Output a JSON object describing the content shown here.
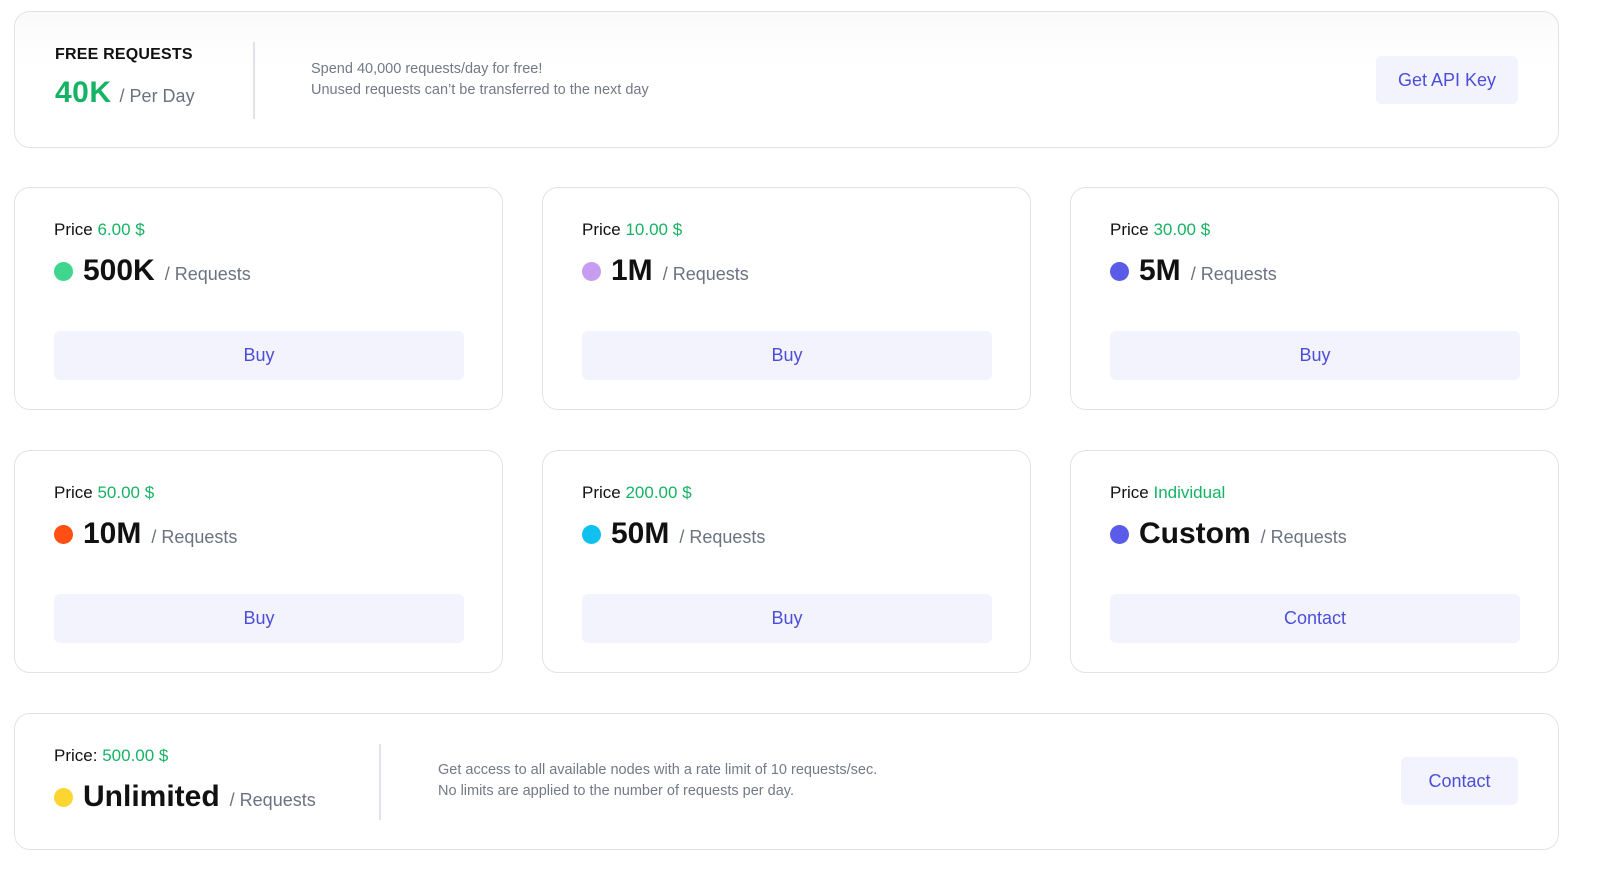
{
  "free": {
    "title": "FREE REQUESTS",
    "amount": "40K",
    "unit": "/ Per Day",
    "desc_line1": "Spend 40,000 requests/day for free!",
    "desc_line2": "Unused requests can’t be transferred to the next day",
    "button": "Get API Key"
  },
  "price_prefix": "Price",
  "plans": [
    {
      "price": "6.00 $",
      "amount": "500K",
      "unit": "/ Requests",
      "dot_color": "#3dd68c",
      "button": "Buy"
    },
    {
      "price": "10.00 $",
      "amount": "1M",
      "unit": "/ Requests",
      "dot_color": "#c79df0",
      "button": "Buy"
    },
    {
      "price": "30.00 $",
      "amount": "5M",
      "unit": "/ Requests",
      "dot_color": "#5b5bea",
      "button": "Buy"
    },
    {
      "price": "50.00 $",
      "amount": "10M",
      "unit": "/ Requests",
      "dot_color": "#ff4f12",
      "button": "Buy"
    },
    {
      "price": "200.00 $",
      "amount": "50M",
      "unit": "/ Requests",
      "dot_color": "#10c0ee",
      "button": "Buy"
    },
    {
      "price": "Individual",
      "amount": "Custom",
      "unit": "/ Requests",
      "dot_color": "#5b5bea",
      "button": "Contact"
    }
  ],
  "unlimited": {
    "price_label": "Price:",
    "price": "500.00 $",
    "amount": "Unlimited",
    "unit": "/ Requests",
    "dot_color": "#fdd531",
    "desc_line1": "Get access to all available nodes with a rate limit of 10 requests/sec.",
    "desc_line2": "No limits are applied to the number of requests per day.",
    "button": "Contact"
  },
  "colors": {
    "accent_green": "#16b364",
    "button_text": "#4d4ed8",
    "button_bg": "#f2f3fd"
  }
}
